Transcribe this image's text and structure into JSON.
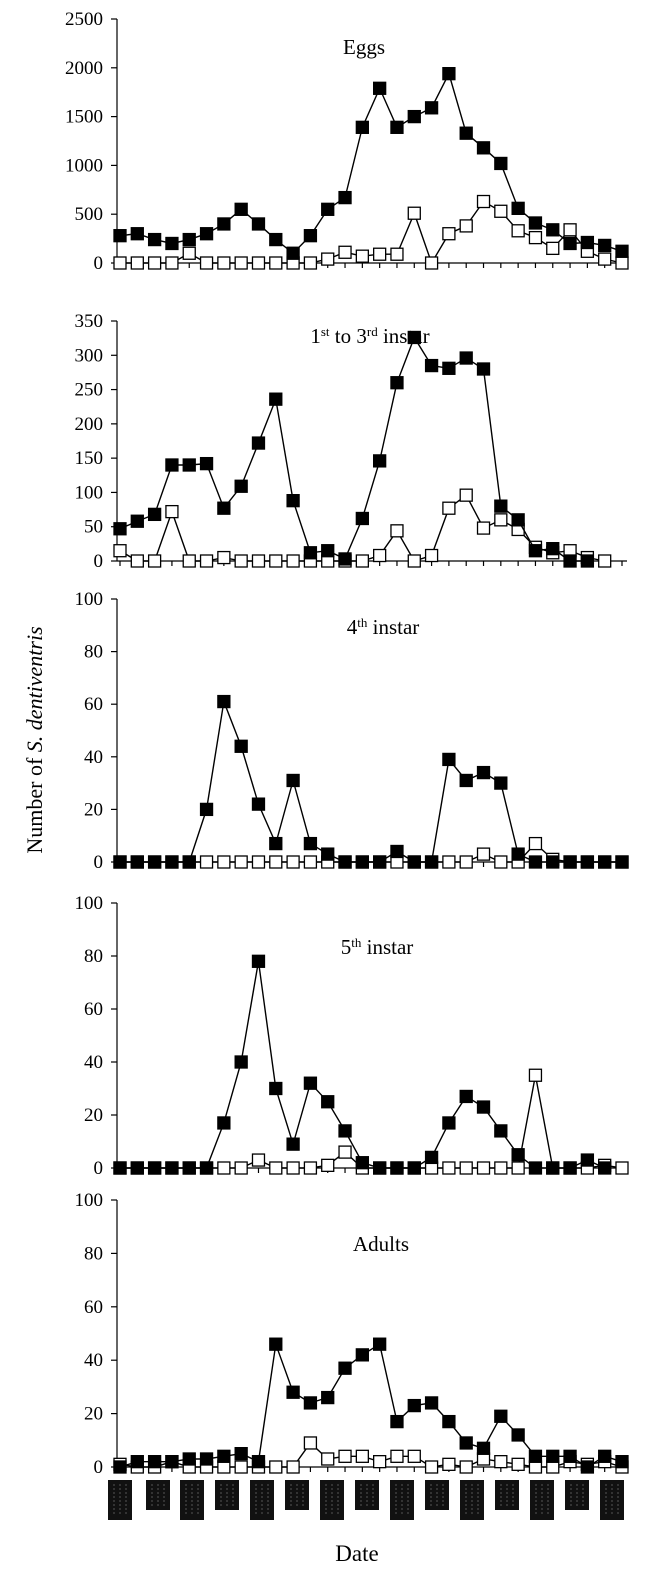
{
  "figure": {
    "ylabel_prefix": "Number of ",
    "ylabel_species": "S. dentiventris",
    "xlabel": "Date"
  },
  "chart_data": [
    {
      "type": "line",
      "title": "Eggs",
      "title_parts": [
        {
          "t": "Eggs"
        }
      ],
      "ylim": [
        0,
        2500
      ],
      "yticks": [
        0,
        500,
        1000,
        1500,
        2000,
        2500
      ],
      "series": [
        {
          "marker": "filled",
          "values": [
            280,
            300,
            240,
            200,
            240,
            300,
            400,
            550,
            400,
            240,
            100,
            280,
            550,
            670,
            1390,
            1790,
            1390,
            1500,
            1590,
            1940,
            1330,
            1180,
            1020,
            560,
            410,
            340,
            200,
            210,
            180,
            120
          ]
        },
        {
          "marker": "open",
          "values": [
            0,
            0,
            0,
            0,
            100,
            0,
            0,
            0,
            0,
            0,
            0,
            0,
            40,
            110,
            70,
            90,
            90,
            510,
            0,
            300,
            380,
            630,
            530,
            330,
            260,
            150,
            340,
            120,
            40,
            0
          ]
        }
      ]
    },
    {
      "type": "line",
      "title": "1st to 3rd instar",
      "title_parts": [
        {
          "t": "1"
        },
        {
          "t": "st",
          "sup": true
        },
        {
          "t": " to 3"
        },
        {
          "t": "rd",
          "sup": true
        },
        {
          "t": " instar"
        }
      ],
      "ylim": [
        0,
        350
      ],
      "yticks": [
        0,
        50,
        100,
        150,
        200,
        250,
        300,
        350
      ],
      "series": [
        {
          "marker": "filled",
          "values": [
            47,
            58,
            68,
            140,
            140,
            142,
            77,
            109,
            172,
            236,
            88,
            12,
            15,
            3,
            62,
            146,
            260,
            326,
            285,
            281,
            296,
            280,
            80,
            60,
            15,
            18,
            0,
            0
          ]
        },
        {
          "marker": "open",
          "values": [
            15,
            0,
            0,
            72,
            0,
            0,
            5,
            0,
            0,
            0,
            0,
            0,
            0,
            0,
            0,
            8,
            44,
            0,
            8,
            77,
            96,
            48,
            60,
            46,
            20,
            12,
            15,
            5,
            0
          ]
        }
      ]
    },
    {
      "type": "line",
      "title": "4th instar",
      "title_parts": [
        {
          "t": "4"
        },
        {
          "t": "th",
          "sup": true
        },
        {
          "t": " instar"
        }
      ],
      "ylim": [
        0,
        100
      ],
      "yticks": [
        0,
        20,
        40,
        60,
        80,
        100
      ],
      "series": [
        {
          "marker": "filled",
          "values": [
            0,
            0,
            0,
            0,
            0,
            20,
            61,
            44,
            22,
            7,
            31,
            7,
            3,
            0,
            0,
            0,
            4,
            0,
            0,
            39,
            31,
            34,
            30,
            3,
            0,
            0,
            0,
            0,
            0,
            0
          ]
        },
        {
          "marker": "open",
          "values": [
            0,
            0,
            0,
            0,
            0,
            0,
            0,
            0,
            0,
            0,
            0,
            0,
            0,
            0,
            0,
            0,
            0,
            0,
            0,
            0,
            0,
            3,
            0,
            0,
            7,
            1,
            0,
            0,
            0,
            0
          ]
        }
      ]
    },
    {
      "type": "line",
      "title": "5th instar",
      "title_parts": [
        {
          "t": "5"
        },
        {
          "t": "th",
          "sup": true
        },
        {
          "t": " instar"
        }
      ],
      "ylim": [
        0,
        100
      ],
      "yticks": [
        0,
        20,
        40,
        60,
        80,
        100
      ],
      "series": [
        {
          "marker": "filled",
          "values": [
            0,
            0,
            0,
            0,
            0,
            0,
            17,
            40,
            78,
            30,
            9,
            32,
            25,
            14,
            2,
            0,
            0,
            0,
            4,
            17,
            27,
            23,
            14,
            5,
            0,
            0,
            0,
            3,
            0
          ]
        },
        {
          "marker": "open",
          "values": [
            0,
            0,
            0,
            0,
            0,
            0,
            0,
            0,
            3,
            0,
            0,
            0,
            1,
            6,
            0,
            0,
            0,
            0,
            0,
            0,
            0,
            0,
            0,
            0,
            35,
            0,
            0,
            0,
            1,
            0
          ]
        }
      ]
    },
    {
      "type": "line",
      "title": "Adults",
      "title_parts": [
        {
          "t": "Adults"
        }
      ],
      "ylim": [
        0,
        100
      ],
      "yticks": [
        0,
        20,
        40,
        60,
        80,
        100
      ],
      "series": [
        {
          "marker": "filled",
          "values": [
            0,
            2,
            2,
            2,
            3,
            3,
            4,
            5,
            2,
            46,
            28,
            24,
            26,
            37,
            42,
            46,
            17,
            23,
            24,
            17,
            9,
            7,
            19,
            12,
            4,
            4,
            4,
            0,
            4,
            2
          ]
        },
        {
          "marker": "open",
          "values": [
            1,
            0,
            0,
            2,
            0,
            0,
            0,
            0,
            0,
            0,
            0,
            9,
            3,
            4,
            4,
            2,
            4,
            4,
            0,
            1,
            0,
            3,
            2,
            1,
            0,
            0,
            2,
            1,
            2,
            0
          ]
        }
      ]
    }
  ]
}
